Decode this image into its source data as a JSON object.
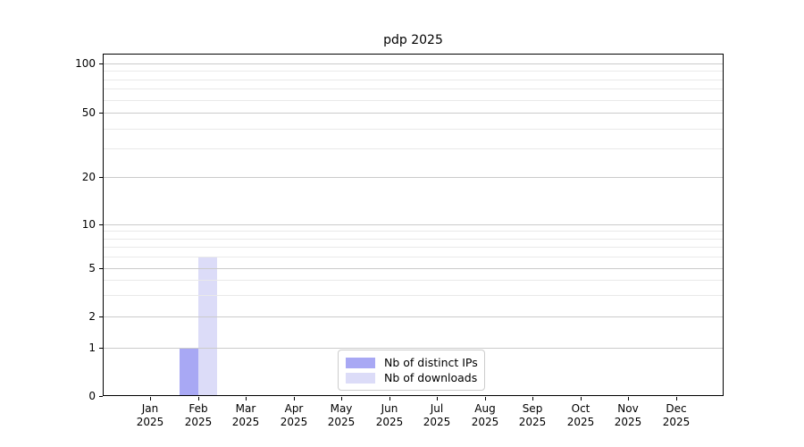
{
  "chart_data": {
    "type": "bar",
    "title": "pdp 2025",
    "x_categories": [
      "Jan",
      "Feb",
      "Mar",
      "Apr",
      "May",
      "Jun",
      "Jul",
      "Aug",
      "Sep",
      "Oct",
      "Nov",
      "Dec"
    ],
    "x_year": "2025",
    "series": [
      {
        "name": "Nb of distinct IPs",
        "color": "#a8a8f4",
        "values": [
          0,
          1,
          0,
          0,
          0,
          0,
          0,
          0,
          0,
          0,
          0,
          0
        ]
      },
      {
        "name": "Nb of downloads",
        "color": "#dcdcf8",
        "values": [
          0,
          6,
          0,
          0,
          0,
          0,
          0,
          0,
          0,
          0,
          0,
          0
        ]
      }
    ],
    "y_scale": "symlog",
    "y_ticks": [
      0,
      1,
      2,
      5,
      10,
      20,
      50,
      100
    ],
    "y_minor_ticks": [
      3,
      4,
      6,
      7,
      8,
      9,
      30,
      40,
      60,
      70,
      80,
      90
    ],
    "ylim": [
      0,
      140
    ],
    "grid": "horizontal",
    "legend_position": "lower center",
    "colors": {
      "background": "#ffffff",
      "axis": "#000000",
      "text": "#000000",
      "major_grid": "#cbcbcb",
      "minor_grid": "#e9e9e9",
      "legend_border": "#cccccc"
    }
  }
}
